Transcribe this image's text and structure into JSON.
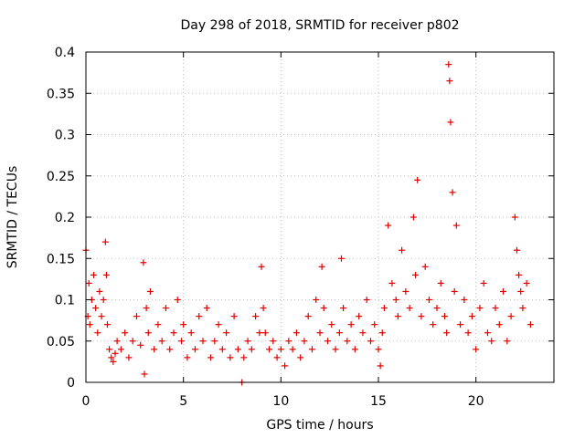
{
  "chart_data": {
    "type": "scatter",
    "title": "Day 298 of 2018, SRMTID for receiver p802",
    "xlabel": "GPS time / hours",
    "ylabel": "SRMTID / TECUs",
    "xlim": [
      0,
      24
    ],
    "ylim": [
      0,
      0.4
    ],
    "x_ticks": [
      0,
      5,
      10,
      15,
      20
    ],
    "x_tick_labels": [
      "0",
      "5",
      "10",
      "15",
      "20"
    ],
    "y_ticks": [
      0,
      0.05,
      0.1,
      0.15,
      0.2,
      0.25,
      0.3,
      0.35,
      0.4
    ],
    "y_tick_labels": [
      "0",
      "0.05",
      "0.1",
      "0.15",
      "0.2",
      "0.25",
      "0.3",
      "0.35",
      "0.4"
    ],
    "grid": true,
    "marker": "+",
    "marker_color": "#e00000",
    "series": [
      {
        "name": "SRMTID",
        "x": [
          0.0,
          0.1,
          0.15,
          0.2,
          0.3,
          0.4,
          0.5,
          0.6,
          0.7,
          0.8,
          0.9,
          1.0,
          1.05,
          1.1,
          1.2,
          1.3,
          1.4,
          1.5,
          1.6,
          1.8,
          2.0,
          2.2,
          2.4,
          2.6,
          2.8,
          2.95,
          3.0,
          3.1,
          3.2,
          3.3,
          3.5,
          3.7,
          3.9,
          4.1,
          4.3,
          4.5,
          4.7,
          4.9,
          5.0,
          5.2,
          5.4,
          5.6,
          5.8,
          6.0,
          6.2,
          6.4,
          6.6,
          6.8,
          7.0,
          7.2,
          7.4,
          7.6,
          7.8,
          8.0,
          8.1,
          8.3,
          8.5,
          8.7,
          8.9,
          9.0,
          9.1,
          9.2,
          9.4,
          9.6,
          9.8,
          10.0,
          10.2,
          10.4,
          10.6,
          10.8,
          11.0,
          11.2,
          11.4,
          11.6,
          11.8,
          12.0,
          12.1,
          12.2,
          12.4,
          12.6,
          12.8,
          13.0,
          13.1,
          13.2,
          13.4,
          13.6,
          13.8,
          14.0,
          14.2,
          14.4,
          14.6,
          14.8,
          15.0,
          15.1,
          15.2,
          15.3,
          15.5,
          15.7,
          15.9,
          16.0,
          16.2,
          16.4,
          16.6,
          16.8,
          16.9,
          17.0,
          17.2,
          17.4,
          17.6,
          17.8,
          18.0,
          18.2,
          18.4,
          18.5,
          18.6,
          18.65,
          18.7,
          18.8,
          18.9,
          19.0,
          19.2,
          19.4,
          19.6,
          19.8,
          20.0,
          20.2,
          20.4,
          20.6,
          20.8,
          21.0,
          21.2,
          21.4,
          21.6,
          21.8,
          22.0,
          22.1,
          22.2,
          22.3,
          22.4,
          22.6,
          22.8
        ],
        "y": [
          0.16,
          0.08,
          0.12,
          0.07,
          0.1,
          0.13,
          0.09,
          0.06,
          0.11,
          0.08,
          0.1,
          0.17,
          0.13,
          0.07,
          0.04,
          0.03,
          0.025,
          0.035,
          0.05,
          0.04,
          0.06,
          0.03,
          0.05,
          0.08,
          0.045,
          0.145,
          0.01,
          0.09,
          0.06,
          0.11,
          0.04,
          0.07,
          0.05,
          0.09,
          0.04,
          0.06,
          0.1,
          0.05,
          0.07,
          0.03,
          0.06,
          0.04,
          0.08,
          0.05,
          0.09,
          0.03,
          0.05,
          0.07,
          0.04,
          0.06,
          0.03,
          0.08,
          0.04,
          0.0,
          0.03,
          0.05,
          0.04,
          0.08,
          0.06,
          0.14,
          0.09,
          0.06,
          0.04,
          0.05,
          0.03,
          0.04,
          0.02,
          0.05,
          0.04,
          0.06,
          0.03,
          0.05,
          0.08,
          0.04,
          0.1,
          0.06,
          0.14,
          0.09,
          0.05,
          0.07,
          0.04,
          0.06,
          0.15,
          0.09,
          0.05,
          0.07,
          0.04,
          0.08,
          0.06,
          0.1,
          0.05,
          0.07,
          0.04,
          0.02,
          0.06,
          0.09,
          0.19,
          0.12,
          0.1,
          0.08,
          0.16,
          0.11,
          0.09,
          0.2,
          0.13,
          0.245,
          0.08,
          0.14,
          0.1,
          0.07,
          0.09,
          0.12,
          0.08,
          0.06,
          0.385,
          0.365,
          0.315,
          0.23,
          0.11,
          0.19,
          0.07,
          0.1,
          0.06,
          0.08,
          0.04,
          0.09,
          0.12,
          0.06,
          0.05,
          0.09,
          0.07,
          0.11,
          0.05,
          0.08,
          0.2,
          0.16,
          0.13,
          0.11,
          0.09,
          0.12,
          0.07
        ]
      }
    ]
  }
}
